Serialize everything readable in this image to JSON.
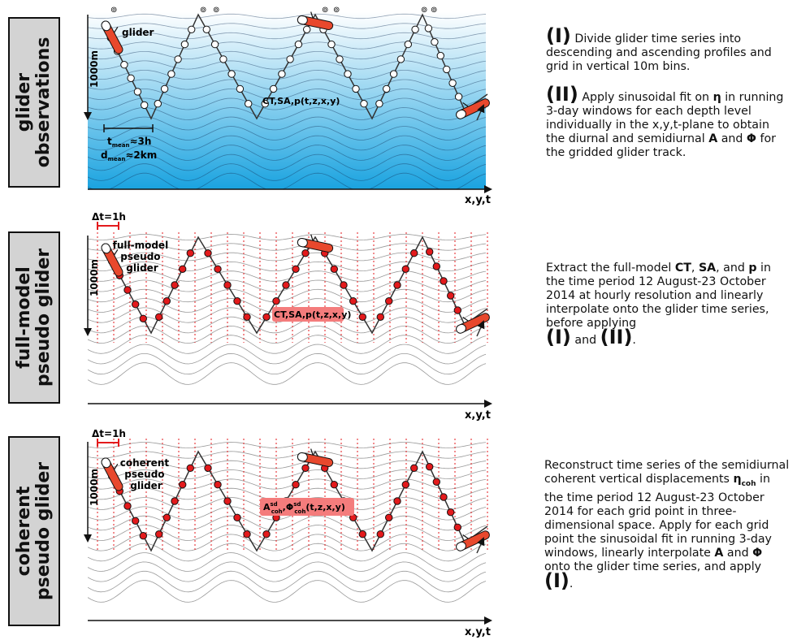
{
  "panels": [
    {
      "tab_line1": "glider",
      "tab_line2": "observations",
      "depth_label": "1000m",
      "axis_label": "x,y,t",
      "glider_label_lines": [
        "glider"
      ],
      "profile_label": "CT,SA,p(t,z,x,y)",
      "t_mean_label": "t",
      "t_mean_sub": "mean",
      "t_mean_value": "≈3h",
      "d_mean_label": "d",
      "d_mean_sub": "mean",
      "d_mean_value": "≈2km",
      "desc_I_numeral": "(I)",
      "desc_I": "Divide glider time series into descending and ascending profiles and grid in vertical 10m bins.",
      "desc_II_numeral": "(II)",
      "desc_II_pre": "Apply sinusoidal fit on",
      "desc_II_eta": "η",
      "desc_II_mid1": "in running 3-day windows for each depth level individually in the x,y,t-plane to obtain the diurnal and semidiurnal",
      "desc_II_A": "A",
      "desc_II_and": "and",
      "desc_II_phi": "Φ",
      "desc_II_post": "for the gridded glider track."
    },
    {
      "tab_line1": "full-model",
      "tab_line2": "pseudo glider",
      "depth_label": "1000m",
      "axis_label": "x,y,t",
      "dt_label": "Δt=1h",
      "glider_label_lines": [
        "full-model",
        "pseudo",
        "glider"
      ],
      "profile_label": "CT,SA,p(t,z,x,y)",
      "desc_pre": "Extract the full-model",
      "desc_CT": "CT",
      "desc_SA": "SA",
      "desc_and": ", and",
      "desc_p": "p",
      "desc_post": "in the time period 12 August-23 October 2014 at hourly resolution and linearly interpolate onto the glider time series, before applying",
      "desc_I": "(I)",
      "desc_and2": "and",
      "desc_II": "(II)"
    },
    {
      "tab_line1": "coherent",
      "tab_line2": "pseudo glider",
      "depth_label": "1000m",
      "axis_label": "x,y,t",
      "dt_label": "Δt=1h",
      "glider_label_lines": [
        "coherent",
        "pseudo",
        "glider"
      ],
      "profile_A": "A",
      "profile_A_sup": "sd",
      "profile_A_sub": "coh",
      "profile_sep": ",",
      "profile_phi": "Φ",
      "profile_phi_sup": "sd",
      "profile_phi_sub": "coh",
      "profile_args": "(t,z,x,y)",
      "desc_pre": "Reconstruct time series of the semidiurnal coherent vertical displacements",
      "desc_eta": "η",
      "desc_eta_sub": "coh",
      "desc_mid": "in the time period 12 August-23 October 2014 for each grid point in three-dimensional space. Apply for each grid point the sinusoidal fit in running 3-day windows, linearly interpolate",
      "desc_A": "A",
      "desc_and": "and",
      "desc_phi": "Φ",
      "desc_post": "onto the glider time series, and apply",
      "desc_I": "(I)"
    }
  ],
  "colors": {
    "ocean_top": "#ffffff",
    "ocean_bottom": "#1aa3e0",
    "glider_body": "#e8482d",
    "dot_red": "#e31a1c",
    "label_pink": "#f47c7c",
    "dt_bar": "#e31a1c",
    "grid_red": "#e31a1c"
  }
}
